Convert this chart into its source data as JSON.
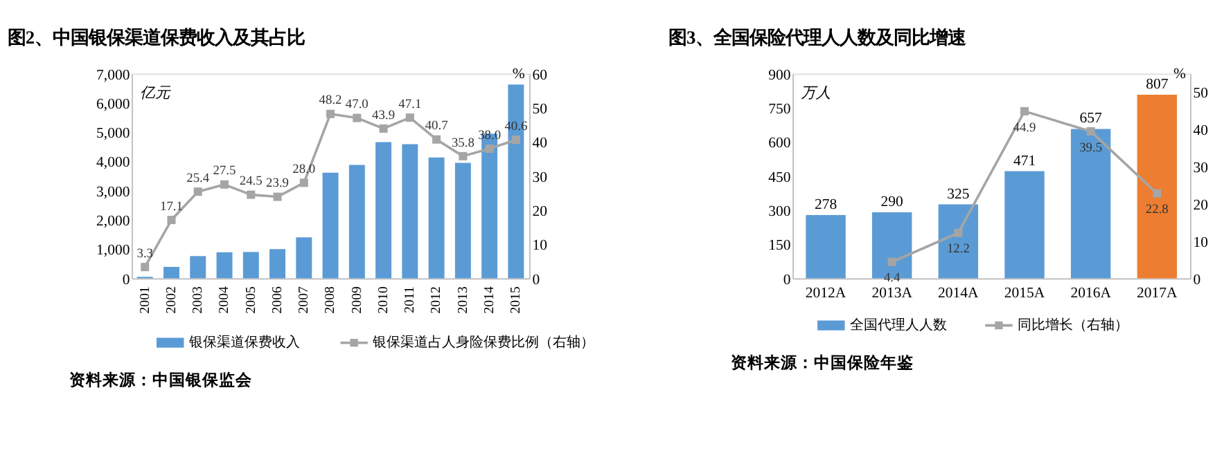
{
  "chart_data": [
    {
      "type": "bar",
      "title": "图2、中国银保渠道保费收入及其占比",
      "ylabel": "亿元",
      "y2label": "%",
      "categories": [
        "2001",
        "2002",
        "2003",
        "2004",
        "2005",
        "2006",
        "2007",
        "2008",
        "2009",
        "2010",
        "2011",
        "2012",
        "2013",
        "2014",
        "2015"
      ],
      "series": [
        {
          "name": "银保渠道保费收入",
          "color": "#5b9bd5",
          "values": [
            50,
            390,
            760,
            890,
            900,
            1000,
            1400,
            3610,
            3880,
            4660,
            4590,
            4130,
            3950,
            4950,
            6630
          ]
        },
        {
          "name": "银保渠道占人身险保费比例（右轴）",
          "type": "line",
          "axis": "y2",
          "color": "#a5a5a5",
          "marker": "square",
          "values": [
            3.3,
            17.1,
            25.4,
            27.5,
            24.5,
            23.9,
            28.0,
            48.2,
            47.0,
            43.9,
            47.1,
            40.7,
            35.8,
            38.0,
            40.6
          ],
          "value_labels": [
            "3.3",
            "17.1",
            "25.4",
            "27.5",
            "24.5",
            "23.9",
            "28.0",
            "48.2",
            "47.0",
            "43.9",
            "47.1",
            "40.7",
            "35.8",
            "38.0",
            "40.6"
          ]
        }
      ],
      "ylim": [
        0,
        7000
      ],
      "yticks": [
        {
          "value": 0,
          "label": "0"
        },
        {
          "value": 1000,
          "label": "1,000"
        },
        {
          "value": 2000,
          "label": "2,000"
        },
        {
          "value": 3000,
          "label": "3,000"
        },
        {
          "value": 4000,
          "label": "4,000"
        },
        {
          "value": 5000,
          "label": "5,000"
        },
        {
          "value": 6000,
          "label": "6,000"
        },
        {
          "value": 7000,
          "label": "7,000"
        }
      ],
      "y2lim": [
        0,
        60
      ],
      "y2ticks": [
        0,
        10,
        20,
        30,
        40,
        50,
        60
      ],
      "grid": false,
      "legend": "bottom",
      "annotations": [
        "资料来源：中国银保监会"
      ]
    },
    {
      "type": "bar",
      "title": "图3、全国保险代理人人数及同比增速",
      "ylabel": "万人",
      "y2label": "%",
      "categories": [
        "2012A",
        "2013A",
        "2014A",
        "2015A",
        "2016A",
        "2017A"
      ],
      "series": [
        {
          "name": "全国代理人人数",
          "color": "#5b9bd5",
          "colors": [
            "#5b9bd5",
            "#5b9bd5",
            "#5b9bd5",
            "#5b9bd5",
            "#5b9bd5",
            "#ed7d31"
          ],
          "values": [
            278,
            290,
            325,
            471,
            657,
            807
          ]
        },
        {
          "name": "同比增长（右轴）",
          "type": "line",
          "axis": "y2",
          "color": "#a5a5a5",
          "marker": "square",
          "values": [
            null,
            4.4,
            12.2,
            44.9,
            39.5,
            22.8
          ]
        }
      ],
      "data_labels": true,
      "ylim": [
        0,
        900
      ],
      "yticks": [
        0,
        150,
        300,
        450,
        600,
        750,
        900
      ],
      "y2lim": [
        0,
        55
      ],
      "y2ticks": [
        0,
        10,
        20,
        30,
        40,
        50
      ],
      "grid": false,
      "legend": "bottom",
      "annotations": [
        "资料来源：中国保险年鉴"
      ]
    }
  ]
}
